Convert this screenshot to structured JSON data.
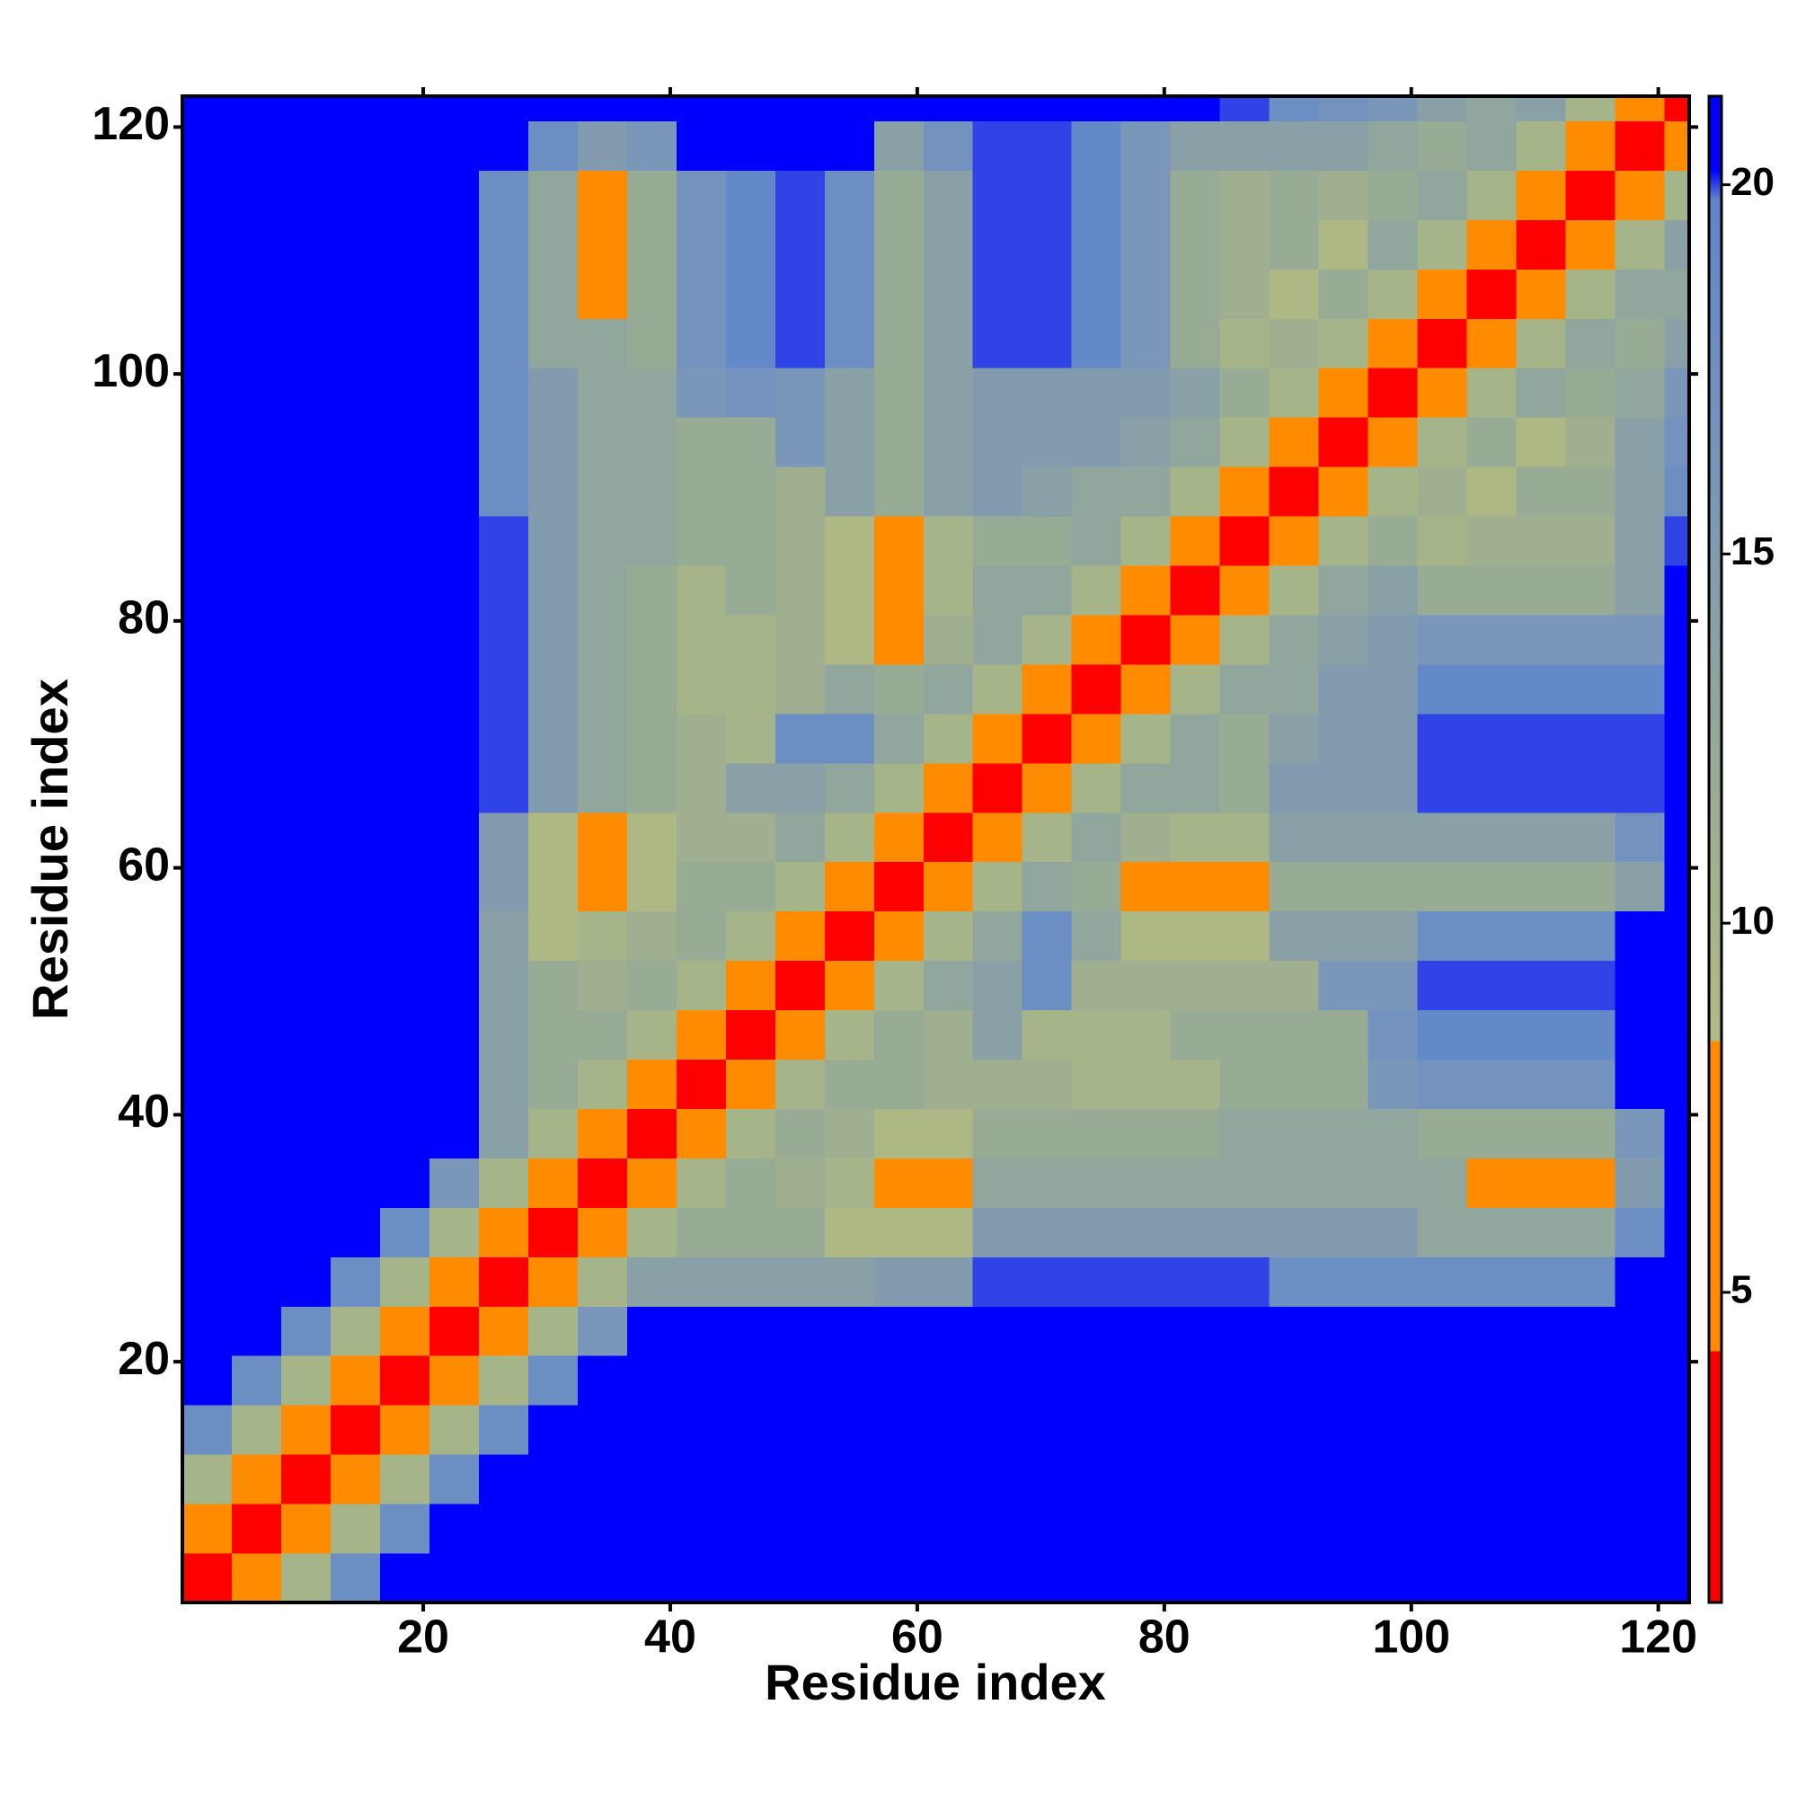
{
  "chart_data": {
    "type": "heatmap",
    "xlabel": "Residue index",
    "ylabel": "Residue index",
    "xlim": [
      0.5,
      122.5
    ],
    "ylim": [
      0.5,
      122.5
    ],
    "xticks": [
      20,
      40,
      60,
      80,
      100,
      120
    ],
    "yticks": [
      20,
      40,
      60,
      80,
      100,
      120
    ],
    "xbins": [
      0.5,
      4.5,
      8.5,
      12.5,
      16.5,
      20.5,
      24.5,
      28.5,
      32.5,
      36.5,
      40.5,
      44.5,
      48.5,
      52.5,
      56.5,
      60.5,
      64.5,
      68.5,
      72.5,
      76.5,
      80.5,
      84.5,
      88.5,
      92.5,
      96.5,
      100.5,
      104.5,
      108.5,
      112.5,
      116.5,
      120.5,
      122.5
    ],
    "ybins": [
      0.5,
      4.5,
      8.5,
      12.5,
      16.5,
      20.5,
      24.5,
      28.5,
      32.5,
      36.5,
      40.5,
      44.5,
      48.5,
      52.5,
      56.5,
      60.5,
      64.5,
      68.5,
      72.5,
      76.5,
      80.5,
      84.5,
      88.5,
      92.5,
      96.5,
      100.5,
      104.5,
      108.5,
      112.5,
      116.5,
      120.5,
      122.5
    ],
    "clim": [
      0.8,
      21.2
    ],
    "cticks": [
      5,
      10,
      15,
      20
    ],
    "colorscale": [
      [
        0.8,
        "#ff0000"
      ],
      [
        4.2,
        "#ff0000"
      ],
      [
        4.2,
        "#ff8c00"
      ],
      [
        8.4,
        "#ff8c00"
      ],
      [
        8.4,
        "#b2bb82"
      ],
      [
        12,
        "#98ab94"
      ],
      [
        16,
        "#7a96b8"
      ],
      [
        19.8,
        "#5e86cc"
      ],
      [
        20.2,
        "#0000ff"
      ],
      [
        21.2,
        "#0000ff"
      ]
    ],
    "z": [
      [
        3,
        6,
        10,
        18,
        22,
        22,
        22,
        22,
        22,
        22,
        22,
        22,
        22,
        22,
        22,
        22,
        22,
        22,
        22,
        22,
        22,
        22,
        22,
        22,
        22,
        22,
        22,
        22,
        22,
        22,
        22
      ],
      [
        6,
        3,
        6,
        10,
        18,
        22,
        22,
        22,
        22,
        22,
        22,
        22,
        22,
        22,
        22,
        22,
        22,
        22,
        22,
        22,
        22,
        22,
        22,
        22,
        22,
        22,
        22,
        22,
        22,
        22,
        22
      ],
      [
        10,
        6,
        3,
        6,
        10,
        18,
        22,
        22,
        22,
        22,
        22,
        22,
        22,
        22,
        22,
        22,
        22,
        22,
        22,
        22,
        22,
        22,
        22,
        22,
        22,
        22,
        22,
        22,
        22,
        22,
        22
      ],
      [
        18,
        10,
        6,
        3,
        6,
        10,
        18,
        22,
        22,
        22,
        22,
        22,
        22,
        22,
        22,
        22,
        22,
        22,
        22,
        22,
        22,
        22,
        22,
        22,
        22,
        22,
        22,
        22,
        22,
        22,
        22
      ],
      [
        22,
        18,
        10,
        6,
        3,
        6,
        10,
        18,
        22,
        22,
        22,
        22,
        22,
        22,
        22,
        22,
        22,
        22,
        22,
        22,
        22,
        22,
        22,
        22,
        22,
        22,
        22,
        22,
        22,
        22,
        22
      ],
      [
        22,
        22,
        18,
        10,
        6,
        3,
        6,
        10,
        16,
        22,
        22,
        22,
        22,
        22,
        22,
        22,
        22,
        22,
        22,
        22,
        22,
        22,
        22,
        22,
        22,
        22,
        22,
        22,
        22,
        22,
        22
      ],
      [
        22,
        22,
        22,
        18,
        10,
        6,
        3,
        6,
        10,
        14,
        14,
        14,
        14,
        14,
        15,
        15,
        20,
        20,
        20,
        20,
        20,
        20,
        18,
        18,
        18,
        18,
        18,
        18,
        18,
        22,
        22
      ],
      [
        22,
        22,
        22,
        22,
        18,
        10,
        6,
        3,
        6,
        10,
        12,
        12,
        12,
        9,
        9,
        9,
        15,
        15,
        15,
        15,
        15,
        15,
        15,
        15,
        15,
        13,
        13,
        13,
        13,
        18,
        22
      ],
      [
        22,
        22,
        22,
        22,
        22,
        16,
        10,
        6,
        3,
        6,
        10,
        12,
        11,
        10,
        8,
        8,
        13,
        13,
        13,
        13,
        13,
        13,
        13,
        13,
        13,
        13,
        8,
        8,
        8,
        15,
        22
      ],
      [
        22,
        22,
        22,
        22,
        22,
        22,
        14,
        10,
        6,
        3,
        6,
        10,
        12,
        11,
        9,
        9,
        12,
        12,
        12,
        12,
        12,
        13,
        13,
        13,
        13,
        12,
        12,
        12,
        12,
        16,
        22
      ],
      [
        22,
        22,
        22,
        22,
        22,
        22,
        14,
        12,
        10,
        6,
        3,
        6,
        10,
        12,
        12,
        11,
        11,
        11,
        10,
        10,
        10,
        12,
        12,
        12,
        16,
        17,
        17,
        17,
        17,
        22,
        22
      ],
      [
        22,
        22,
        22,
        22,
        22,
        22,
        14,
        12,
        12,
        10,
        6,
        3,
        6,
        10,
        12,
        11,
        14,
        10,
        10,
        10,
        12,
        12,
        12,
        12,
        17,
        19,
        19,
        19,
        19,
        22,
        22
      ],
      [
        22,
        22,
        22,
        22,
        22,
        22,
        14,
        12,
        11,
        12,
        10,
        6,
        3,
        6,
        10,
        13,
        14,
        18,
        11,
        11,
        11,
        11,
        11,
        16,
        16,
        20,
        20,
        20,
        20,
        22,
        22
      ],
      [
        22,
        22,
        22,
        22,
        22,
        22,
        14,
        9,
        10,
        11,
        12,
        10,
        6,
        3,
        6,
        10,
        13,
        18,
        13,
        9,
        9,
        9,
        14,
        14,
        14,
        18,
        18,
        18,
        18,
        22,
        22
      ],
      [
        22,
        22,
        22,
        22,
        22,
        22,
        15,
        9,
        8,
        9,
        12,
        12,
        10,
        6,
        3,
        6,
        10,
        13,
        12,
        8,
        8,
        8,
        12,
        12,
        12,
        12,
        12,
        12,
        12,
        14,
        22
      ],
      [
        22,
        22,
        22,
        22,
        22,
        22,
        15,
        9,
        8,
        9,
        11,
        11,
        13,
        10,
        6,
        3,
        6,
        10,
        13,
        11,
        10,
        10,
        14,
        14,
        14,
        14,
        14,
        14,
        14,
        17,
        22
      ],
      [
        22,
        22,
        22,
        22,
        22,
        22,
        20,
        15,
        13,
        12,
        11,
        14,
        14,
        13,
        10,
        6,
        3,
        6,
        10,
        13,
        13,
        12,
        15,
        15,
        15,
        20,
        20,
        20,
        20,
        20,
        22
      ],
      [
        22,
        22,
        22,
        22,
        22,
        22,
        20,
        15,
        13,
        12,
        11,
        10,
        18,
        18,
        13,
        10,
        6,
        3,
        6,
        10,
        13,
        12,
        14,
        15,
        15,
        20,
        20,
        20,
        20,
        20,
        22
      ],
      [
        22,
        22,
        22,
        22,
        22,
        22,
        20,
        15,
        13,
        12,
        10,
        10,
        11,
        13,
        12,
        13,
        10,
        6,
        3,
        6,
        10,
        13,
        13,
        15,
        15,
        19,
        19,
        19,
        19,
        19,
        22
      ],
      [
        22,
        22,
        22,
        22,
        22,
        22,
        20,
        15,
        13,
        12,
        10,
        10,
        11,
        9,
        8,
        11,
        13,
        10,
        6,
        3,
        6,
        10,
        13,
        14,
        15,
        16,
        16,
        16,
        16,
        16,
        22
      ],
      [
        22,
        22,
        22,
        22,
        22,
        22,
        20,
        15,
        13,
        12,
        10,
        12,
        11,
        9,
        8,
        10,
        13,
        13,
        10,
        6,
        3,
        6,
        10,
        13,
        14,
        12,
        12,
        12,
        12,
        14,
        22
      ],
      [
        22,
        22,
        22,
        22,
        22,
        22,
        20,
        15,
        13,
        13,
        12,
        12,
        11,
        9,
        8,
        10,
        12,
        12,
        13,
        10,
        6,
        3,
        6,
        10,
        12,
        10,
        11,
        11,
        11,
        14,
        20
      ],
      [
        22,
        22,
        22,
        22,
        22,
        22,
        18,
        15,
        13,
        13,
        12,
        12,
        11,
        14,
        12,
        14,
        15,
        14,
        13,
        13,
        10,
        6,
        3,
        6,
        10,
        11,
        9,
        12,
        12,
        14,
        18
      ],
      [
        22,
        22,
        22,
        22,
        22,
        22,
        18,
        15,
        13,
        13,
        12,
        12,
        16,
        14,
        12,
        14,
        15,
        15,
        15,
        14,
        13,
        10,
        6,
        3,
        6,
        10,
        12,
        9,
        11,
        14,
        17
      ],
      [
        22,
        22,
        22,
        22,
        22,
        22,
        18,
        15,
        13,
        13,
        16,
        17,
        16,
        14,
        12,
        14,
        15,
        15,
        15,
        15,
        14,
        12,
        10,
        6,
        3,
        6,
        10,
        13,
        12,
        13,
        16
      ],
      [
        22,
        22,
        22,
        22,
        22,
        22,
        18,
        13,
        13,
        12,
        17,
        19,
        20,
        18,
        12,
        14,
        20,
        20,
        19,
        16,
        12,
        10,
        11,
        10,
        6,
        3,
        6,
        10,
        13,
        12,
        14
      ],
      [
        22,
        22,
        22,
        22,
        22,
        22,
        18,
        13,
        8,
        12,
        17,
        19,
        20,
        18,
        12,
        14,
        20,
        20,
        19,
        16,
        12,
        11,
        9,
        12,
        10,
        6,
        3,
        6,
        10,
        13,
        13
      ],
      [
        22,
        22,
        22,
        22,
        22,
        22,
        18,
        13,
        8,
        12,
        17,
        19,
        20,
        18,
        12,
        14,
        20,
        20,
        19,
        16,
        12,
        11,
        12,
        9,
        13,
        10,
        6,
        3,
        6,
        10,
        14
      ],
      [
        22,
        22,
        22,
        22,
        22,
        22,
        18,
        13,
        8,
        12,
        17,
        19,
        20,
        18,
        12,
        14,
        20,
        20,
        19,
        16,
        12,
        11,
        12,
        11,
        12,
        13,
        10,
        6,
        3,
        6,
        10
      ],
      [
        22,
        22,
        22,
        22,
        22,
        22,
        22,
        18,
        15,
        16,
        22,
        22,
        22,
        22,
        14,
        17,
        20,
        20,
        19,
        16,
        14,
        14,
        14,
        14,
        13,
        12,
        13,
        10,
        6,
        3,
        6
      ],
      [
        22,
        22,
        22,
        22,
        22,
        22,
        22,
        22,
        22,
        22,
        22,
        22,
        22,
        22,
        22,
        22,
        22,
        22,
        22,
        22,
        22,
        20,
        18,
        17,
        16,
        14,
        13,
        14,
        10,
        6,
        3
      ]
    ]
  }
}
